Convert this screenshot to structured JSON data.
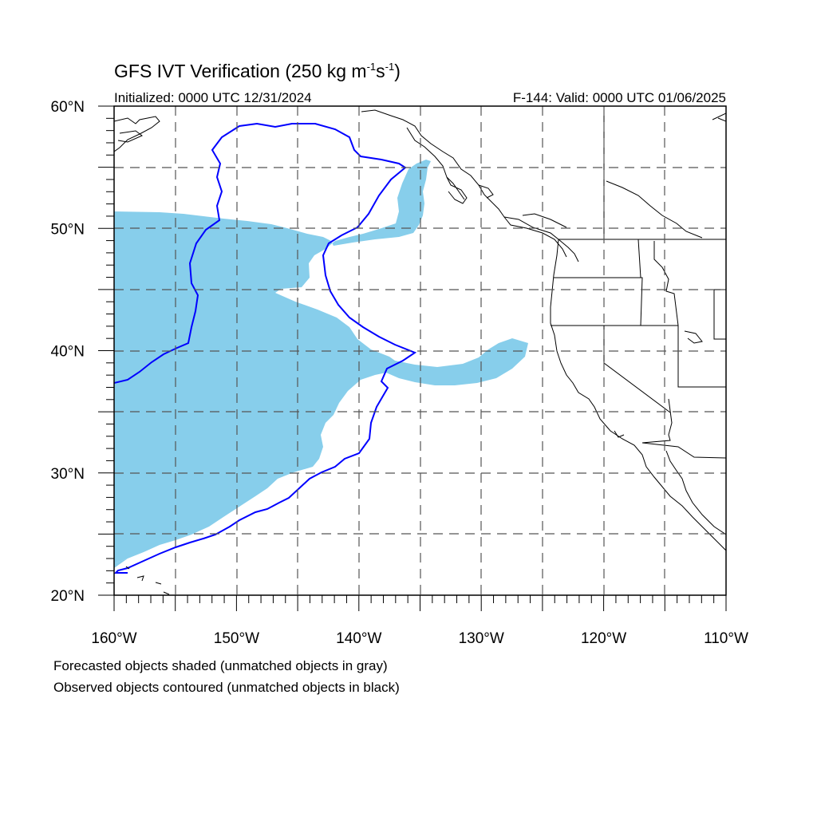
{
  "title": {
    "text_before_sup1": "GFS IVT Verification (250 kg m",
    "sup1": "-1",
    "text_between": "s",
    "sup2": "-1",
    "text_after": ")"
  },
  "initialized": "Initialized: 0000 UTC 12/31/2024",
  "valid": "F-144: Valid: 0000 UTC 01/06/2025",
  "lat_labels": [
    {
      "text": "60°N",
      "lat": 60
    },
    {
      "text": "50°N",
      "lat": 50
    },
    {
      "text": "40°N",
      "lat": 40
    },
    {
      "text": "30°N",
      "lat": 30
    },
    {
      "text": "20°N",
      "lat": 20
    }
  ],
  "lon_labels": [
    {
      "text": "160°W",
      "lon": -160
    },
    {
      "text": "150°W",
      "lon": -150
    },
    {
      "text": "140°W",
      "lon": -140
    },
    {
      "text": "130°W",
      "lon": -130
    },
    {
      "text": "120°W",
      "lon": -120
    },
    {
      "text": "110°W",
      "lon": -110
    }
  ],
  "notes": [
    "Forecasted objects shaded (unmatched objects in gray)",
    "Observed objects contoured (unmatched objects in black)"
  ],
  "map": {
    "lon_range": [
      -160,
      -110
    ],
    "lat_range": [
      20,
      60
    ],
    "grid_lons": [
      -155,
      -150,
      -145,
      -140,
      -135,
      -130,
      -125,
      -120,
      -115
    ],
    "grid_lats": [
      25,
      30,
      35,
      40,
      45,
      50,
      55
    ]
  },
  "colors": {
    "forecast_fill": "#87ceeb",
    "observed_contour": "#0000ff",
    "coastline": "#000000",
    "grid": "#555555"
  }
}
